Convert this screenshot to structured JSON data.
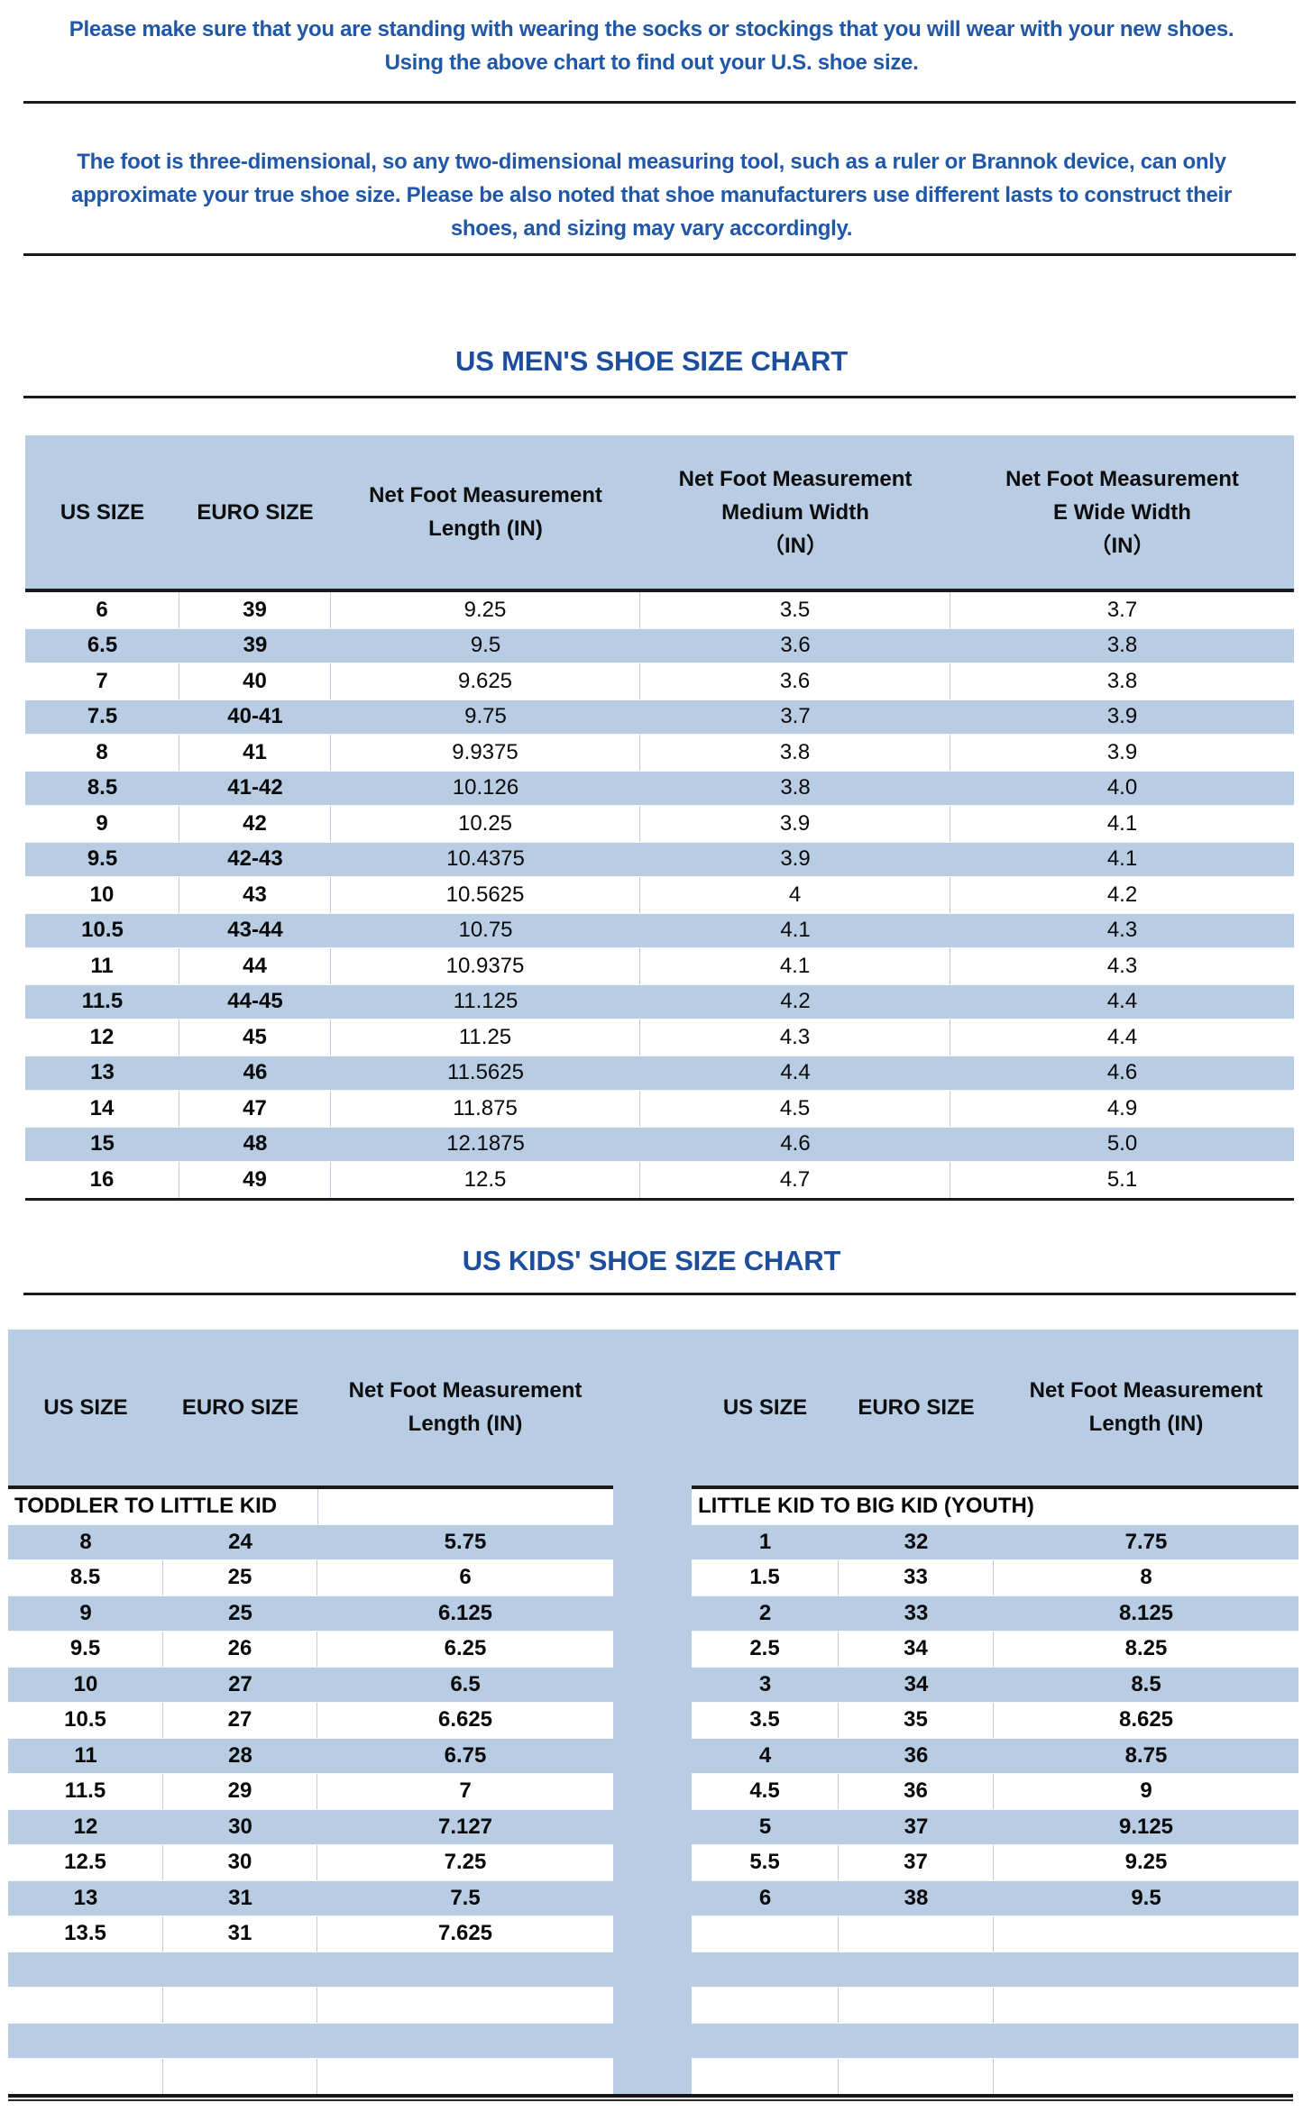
{
  "intro": {
    "paragraph1_lines": [
      "Please make sure that you are standing with wearing the socks or stockings that you will wear with your new shoes.",
      "Using the above chart to find out your U.S. shoe size."
    ],
    "paragraph2_lines": [
      "The foot is three-dimensional, so any two-dimensional measuring tool, such as a ruler or Brannok device, can only",
      "approximate your true shoe size. Please be also noted that shoe manufacturers use different lasts to construct their",
      "shoes, and sizing may vary accordingly."
    ]
  },
  "mens_chart": {
    "title": "US MEN'S SHOE SIZE CHART",
    "headers": [
      "US SIZE",
      "EURO SIZE",
      "Net Foot Measurement\nLength (IN)",
      "Net Foot Measurement\nMedium Width\n（IN）",
      "Net Foot Measurement\nE Wide Width\n（IN）"
    ],
    "rows": [
      [
        "6",
        "39",
        "9.25",
        "3.5",
        "3.7"
      ],
      [
        "6.5",
        "39",
        "9.5",
        "3.6",
        "3.8"
      ],
      [
        "7",
        "40",
        "9.625",
        "3.6",
        "3.8"
      ],
      [
        "7.5",
        "40-41",
        "9.75",
        "3.7",
        "3.9"
      ],
      [
        "8",
        "41",
        "9.9375",
        "3.8",
        "3.9"
      ],
      [
        "8.5",
        "41-42",
        "10.126",
        "3.8",
        "4.0"
      ],
      [
        "9",
        "42",
        "10.25",
        "3.9",
        "4.1"
      ],
      [
        "9.5",
        "42-43",
        "10.4375",
        "3.9",
        "4.1"
      ],
      [
        "10",
        "43",
        "10.5625",
        "4",
        "4.2"
      ],
      [
        "10.5",
        "43-44",
        "10.75",
        "4.1",
        "4.3"
      ],
      [
        "11",
        "44",
        "10.9375",
        "4.1",
        "4.3"
      ],
      [
        "11.5",
        "44-45",
        "11.125",
        "4.2",
        "4.4"
      ],
      [
        "12",
        "45",
        "11.25",
        "4.3",
        "4.4"
      ],
      [
        "13",
        "46",
        "11.5625",
        "4.4",
        "4.6"
      ],
      [
        "14",
        "47",
        "11.875",
        "4.5",
        "4.9"
      ],
      [
        "15",
        "48",
        "12.1875",
        "4.6",
        "5.0"
      ],
      [
        "16",
        "49",
        "12.5",
        "4.7",
        "5.1"
      ]
    ]
  },
  "kids_chart": {
    "title": "US KIDS' SHOE SIZE CHART",
    "left": {
      "headers": [
        "US SIZE",
        "EURO SIZE",
        "Net Foot Measurement\nLength (IN)"
      ],
      "section_label": "TODDLER TO LITTLE KID",
      "rows": [
        [
          "8",
          "24",
          "5.75"
        ],
        [
          "8.5",
          "25",
          "6"
        ],
        [
          "9",
          "25",
          "6.125"
        ],
        [
          "9.5",
          "26",
          "6.25"
        ],
        [
          "10",
          "27",
          "6.5"
        ],
        [
          "10.5",
          "27",
          "6.625"
        ],
        [
          "11",
          "28",
          "6.75"
        ],
        [
          "11.5",
          "29",
          "7"
        ],
        [
          "12",
          "30",
          "7.127"
        ],
        [
          "12.5",
          "30",
          "7.25"
        ],
        [
          "13",
          "31",
          "7.5"
        ],
        [
          "13.5",
          "31",
          "7.625"
        ]
      ]
    },
    "right": {
      "headers": [
        "US SIZE",
        "EURO SIZE",
        "Net Foot Measurement\nLength (IN)"
      ],
      "section_label": "LITTLE KID TO BIG KID (YOUTH)",
      "rows": [
        [
          "1",
          "32",
          "7.75"
        ],
        [
          "1.5",
          "33",
          "8"
        ],
        [
          "2",
          "33",
          "8.125"
        ],
        [
          "2.5",
          "34",
          "8.25"
        ],
        [
          "3",
          "34",
          "8.5"
        ],
        [
          "3.5",
          "35",
          "8.625"
        ],
        [
          "4",
          "36",
          "8.75"
        ],
        [
          "4.5",
          "36",
          "9"
        ],
        [
          "5",
          "37",
          "9.125"
        ],
        [
          "5.5",
          "37",
          "9.25"
        ],
        [
          "6",
          "38",
          "9.5"
        ]
      ]
    },
    "total_body_rows": 16
  },
  "colors": {
    "band_blue": "#b8cce4",
    "text_blue": "#2057a7",
    "title_blue": "#1d4e9e",
    "line_dark": "#1a1a1a",
    "sep_gray": "#c3ccd9"
  }
}
